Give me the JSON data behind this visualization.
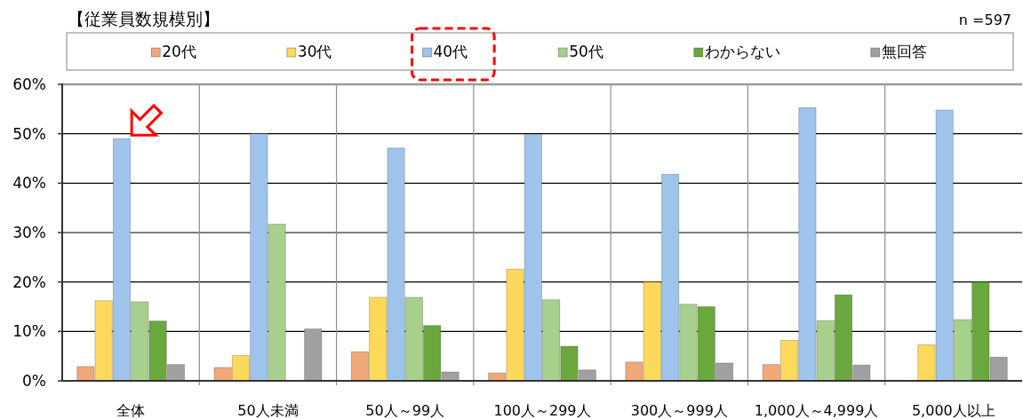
{
  "chart_data": {
    "type": "bar",
    "title": "【従業員数規模別】",
    "annotations": [
      "n =597"
    ],
    "categories": [
      "全体",
      "50人未満",
      "50人～99人",
      "100人～299人",
      "300人～999人",
      "1,000人～4,999人",
      "5,000人以上"
    ],
    "series": [
      {
        "name": "20代",
        "color": "#f0a878",
        "values": [
          2.9,
          2.7,
          5.9,
          1.6,
          3.8,
          3.3,
          0
        ]
      },
      {
        "name": "30代",
        "color": "#fcd95a",
        "values": [
          16.2,
          5.1,
          16.9,
          22.6,
          20.0,
          8.2,
          7.3
        ]
      },
      {
        "name": "40代",
        "color": "#9ec4ec",
        "values": [
          49.0,
          50.0,
          47.1,
          49.9,
          41.8,
          55.3,
          54.8
        ]
      },
      {
        "name": "50代",
        "color": "#a8d08d",
        "values": [
          16.0,
          31.7,
          16.9,
          16.4,
          15.5,
          12.2,
          12.4
        ]
      },
      {
        "name": "わからない",
        "color": "#6aa83e",
        "values": [
          12.1,
          0,
          11.2,
          7.0,
          15.0,
          17.4,
          20.0
        ]
      },
      {
        "name": "無回答",
        "color": "#a0a0a0",
        "values": [
          3.3,
          10.5,
          1.8,
          2.2,
          3.6,
          3.2,
          4.8
        ]
      }
    ],
    "ylim": [
      0,
      60
    ],
    "yticks": [
      {
        "value": 0,
        "label": "0%"
      },
      {
        "value": 10,
        "label": "10%"
      },
      {
        "value": 20,
        "label": "20%"
      },
      {
        "value": 30,
        "label": "30%"
      },
      {
        "value": 40,
        "label": "40%"
      },
      {
        "value": 50,
        "label": "50%"
      },
      {
        "value": 60,
        "label": "60%"
      }
    ],
    "grid": true,
    "legend": "top"
  }
}
